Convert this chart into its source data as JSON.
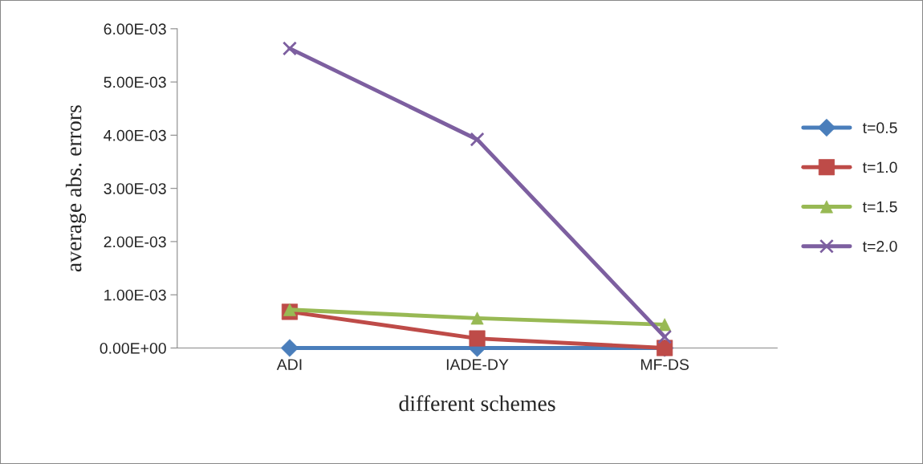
{
  "chart_data": {
    "type": "line",
    "xlabel": "different schemes",
    "ylabel": "average abs. errors",
    "categories": [
      "ADI",
      "IADE-DY",
      "MF-DS"
    ],
    "series": [
      {
        "name": "t=0.5",
        "color": "#4a7ebb",
        "marker": "diamond",
        "values": [
          0.0,
          0.0,
          0.0
        ]
      },
      {
        "name": "t=1.0",
        "color": "#be4b48",
        "marker": "square",
        "values": [
          0.00068,
          0.00018,
          0.0
        ]
      },
      {
        "name": "t=1.5",
        "color": "#98b954",
        "marker": "triangle",
        "values": [
          0.00072,
          0.00056,
          0.00044
        ]
      },
      {
        "name": "t=2.0",
        "color": "#7d5fa0",
        "marker": "cross",
        "values": [
          0.00563,
          0.00392,
          0.00021
        ]
      }
    ],
    "ylim": [
      0,
      0.006
    ],
    "yticks": [
      {
        "value": 0,
        "label": "0.00E+00"
      },
      {
        "value": 0.001,
        "label": "1.00E-03"
      },
      {
        "value": 0.002,
        "label": "2.00E-03"
      },
      {
        "value": 0.003,
        "label": "3.00E-03"
      },
      {
        "value": 0.004,
        "label": "4.00E-03"
      },
      {
        "value": 0.005,
        "label": "5.00E-03"
      },
      {
        "value": 0.006,
        "label": "6.00E-03"
      }
    ],
    "grid": false,
    "legend": "right",
    "line_style": "solid"
  }
}
